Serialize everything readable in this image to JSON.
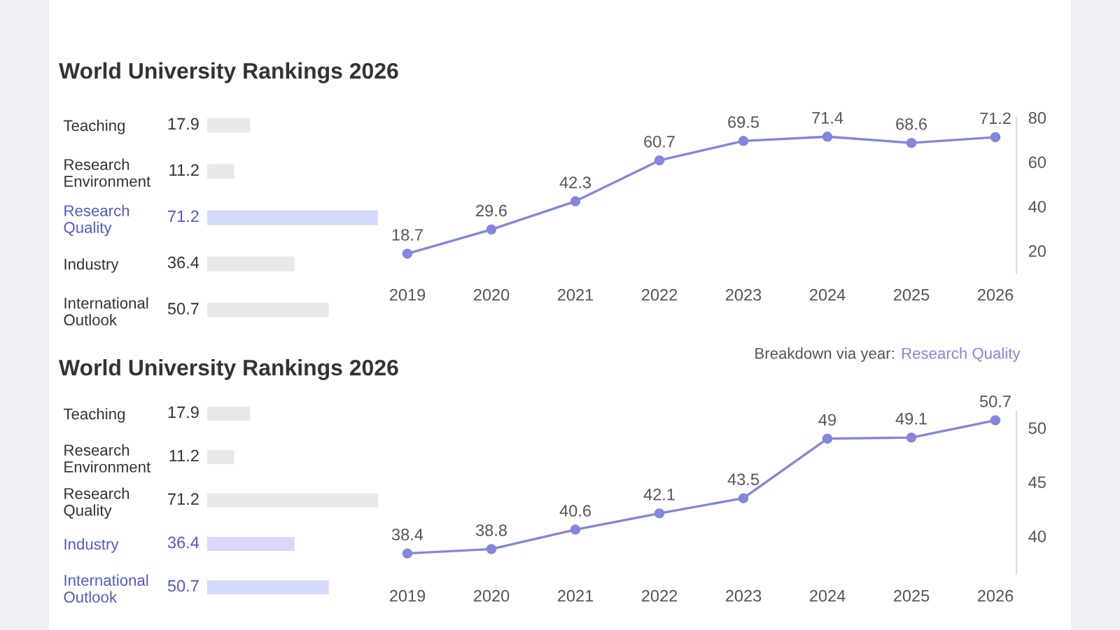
{
  "chart_data": [
    {
      "type": "bar",
      "orientation": "horizontal",
      "title": "World University Rankings 2026",
      "categories": [
        "Teaching",
        "Research\nEnvironment",
        "Research\nQuality",
        "Industry",
        "International\nOutlook"
      ],
      "values": [
        17.9,
        11.2,
        71.2,
        36.4,
        50.7
      ],
      "colors": [
        "#e8e8e8",
        "#e8e8e8",
        "#d6d9fa",
        "#e8e8e8",
        "#e8e8e8"
      ],
      "data_labels": true,
      "tick_labels": "y"
    },
    {
      "type": "line",
      "categories": [
        "2019",
        "2020",
        "2021",
        "2022",
        "2023",
        "2024",
        "2025",
        "2026"
      ],
      "series": [
        {
          "color": "#8286dc",
          "values": [
            18.7,
            29.6,
            42.3,
            60.7,
            69.5,
            71.4,
            68.6,
            71.2
          ]
        }
      ],
      "ylim": [
        10,
        80
      ],
      "yticks": [
        20,
        40,
        60,
        80
      ],
      "marker": "circle",
      "data_labels": true,
      "annotations": [
        "Breakdown via year:",
        "Research Quality"
      ]
    },
    {
      "type": "bar",
      "orientation": "horizontal",
      "title": "World University Rankings 2026",
      "categories": [
        "Teaching",
        "Research\nEnvironment",
        "Research\nQuality",
        "Industry",
        "International\nOutlook"
      ],
      "values": [
        17.9,
        11.2,
        71.2,
        36.4,
        50.7
      ],
      "colors": [
        "#e8e8e8",
        "#e8e8e8",
        "#e8e8e8",
        "#d6d9fa",
        "#d6d9fa"
      ],
      "data_labels": true,
      "tick_labels": "y"
    },
    {
      "type": "line",
      "categories": [
        "2019",
        "2020",
        "2021",
        "2022",
        "2023",
        "2024",
        "2025",
        "2026"
      ],
      "series": [
        {
          "color": "#8286dc",
          "values": [
            38.4,
            38.8,
            40.6,
            42.1,
            43.5,
            49,
            49.1,
            50.7
          ]
        }
      ],
      "ylim": [
        36.5,
        51.5
      ],
      "yticks": [
        40,
        45,
        50
      ],
      "marker": "circle",
      "data_labels": true
    }
  ]
}
